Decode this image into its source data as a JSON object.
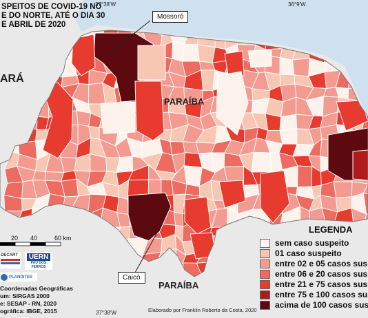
{
  "title_lines": [
    "SPEITOS DE COVID-19 NO",
    "E DO NORTE, ATÉ O DIA 30",
    "E ABRIL DE 2020"
  ],
  "coords": {
    "lon_top_left": "37°38'W",
    "lon_top_right": "36°9'W",
    "lon_bottom": "37°38'W"
  },
  "states": {
    "ceara": "ARÁ",
    "paraiba_upper": "PARAÍBA",
    "paraiba_lower": "PARAÍBA"
  },
  "callouts": {
    "mossoro": "Mossoró",
    "caico": "Caicó"
  },
  "legend": {
    "title": "LEGENDA",
    "items": [
      {
        "label": "sem caso suspeito",
        "color": "#fdf3ec"
      },
      {
        "label": "01 caso suspeito",
        "color": "#f7c7b4"
      },
      {
        "label": "entre 02 e 05 casos sus",
        "color": "#f49b91"
      },
      {
        "label": "entre 06 e 20 casos sus",
        "color": "#ee6b61"
      },
      {
        "label": "entre 21 e 75 casos sus",
        "color": "#e63b2e"
      },
      {
        "label": "entre 75 e 100 casos sus",
        "color": "#b01a1a"
      },
      {
        "label": "acima de 100 casos sus",
        "color": "#5c0a10"
      }
    ]
  },
  "scale": {
    "labels": [
      "20",
      "40",
      "60 km"
    ]
  },
  "logos": {
    "uern": "UERN",
    "uern_sub": "PAU DOS FERROS",
    "decart": "DECART",
    "plandites": "PLANDITES"
  },
  "meta_lines": [
    "Coordenadas Geográficas",
    "um: SIRGAS 2000",
    "e: SESAP - RN, 2020",
    "ográfica: IBGE, 2015"
  ],
  "credit": "Elaborado por Franklin Roberto da Costa, 2020"
}
